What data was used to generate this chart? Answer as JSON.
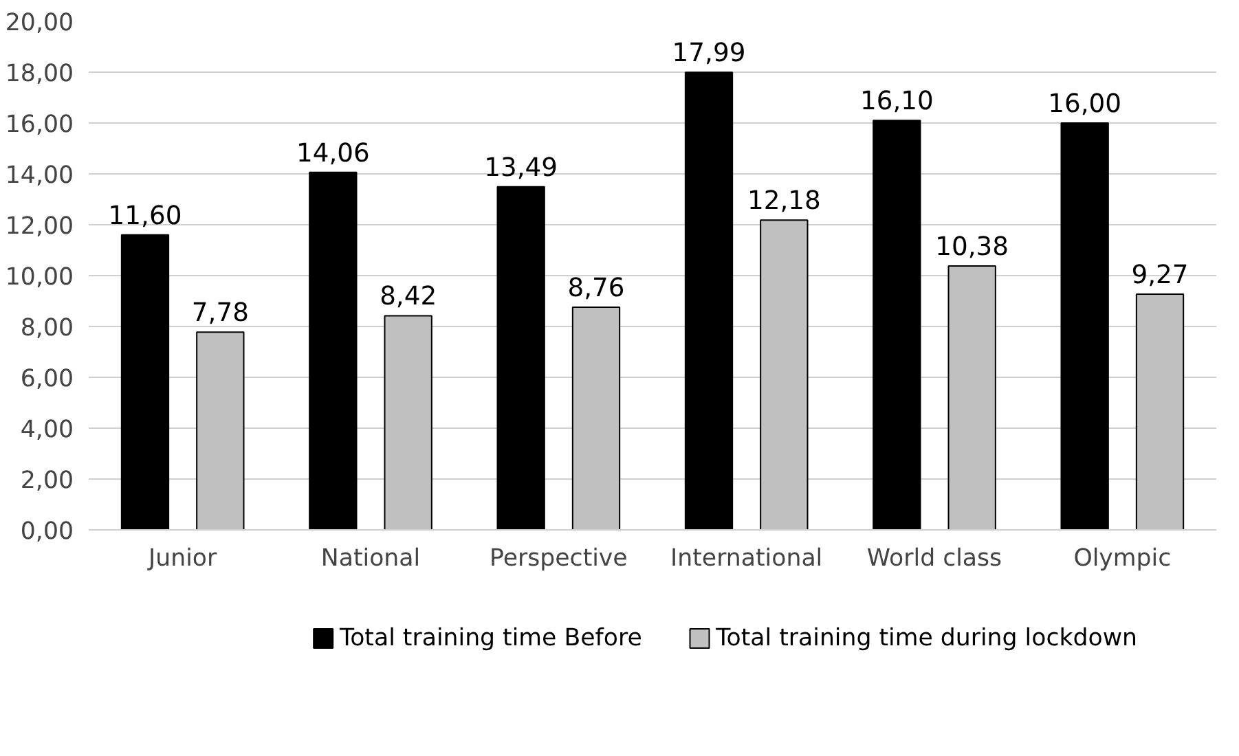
{
  "chart_data": {
    "type": "bar",
    "categories": [
      "Junior",
      "National",
      "Perspective",
      "International",
      "World class",
      "Olympic"
    ],
    "series": [
      {
        "name": "Total training time Before",
        "color": "#000000",
        "values": [
          11.6,
          14.06,
          13.49,
          17.99,
          16.1,
          16.0
        ],
        "value_labels": [
          "11,60",
          "14,06",
          "13,49",
          "17,99",
          "16,10",
          "16,00"
        ]
      },
      {
        "name": "Total training time during lockdown",
        "color": "#c0c0c0",
        "values": [
          7.78,
          8.42,
          8.76,
          12.18,
          10.38,
          9.27
        ],
        "value_labels": [
          "7,78",
          "8,42",
          "8,76",
          "12,18",
          "10,38",
          "9,27"
        ]
      }
    ],
    "ylim": [
      0,
      20
    ],
    "yticks": [
      {
        "value": 0,
        "label": "0,00"
      },
      {
        "value": 2,
        "label": "2,00"
      },
      {
        "value": 4,
        "label": "4,00"
      },
      {
        "value": 6,
        "label": "6,00"
      },
      {
        "value": 8,
        "label": "8,00"
      },
      {
        "value": 10,
        "label": "10,00"
      },
      {
        "value": 12,
        "label": "12,00"
      },
      {
        "value": 14,
        "label": "14,00"
      },
      {
        "value": 16,
        "label": "16,00"
      },
      {
        "value": 18,
        "label": "18,00"
      },
      {
        "value": 20,
        "label": "20,00"
      }
    ],
    "grid": "y",
    "legend": "bottom"
  }
}
